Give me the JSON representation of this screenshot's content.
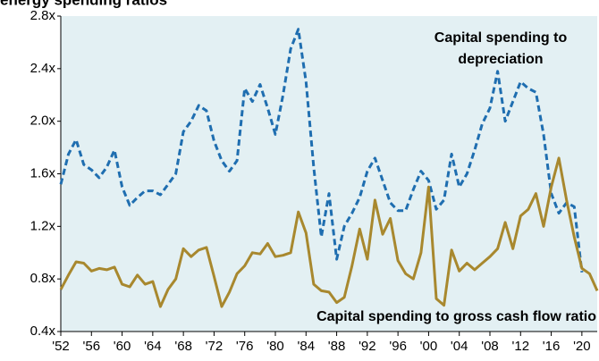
{
  "chart_data": {
    "type": "line",
    "title": "energy spending ratios",
    "annotations": [
      "Capital spending to",
      "depreciation",
      "Capital spending to gross cash flow ratio"
    ],
    "x": [
      1952,
      1953,
      1954,
      1955,
      1956,
      1957,
      1958,
      1959,
      1960,
      1961,
      1962,
      1963,
      1964,
      1965,
      1966,
      1967,
      1968,
      1969,
      1970,
      1971,
      1972,
      1973,
      1974,
      1975,
      1976,
      1977,
      1978,
      1979,
      1980,
      1981,
      1982,
      1983,
      1984,
      1985,
      1986,
      1987,
      1988,
      1989,
      1990,
      1991,
      1992,
      1993,
      1994,
      1995,
      1996,
      1997,
      1998,
      1999,
      2000,
      2001,
      2002,
      2003,
      2004,
      2005,
      2006,
      2007,
      2008,
      2009,
      2010,
      2011,
      2012,
      2013,
      2014,
      2015,
      2016,
      2017,
      2018,
      2019,
      2020,
      2021,
      2022
    ],
    "series": [
      {
        "color": "#1f6eb0",
        "dashed": true,
        "values": [
          1.52,
          1.75,
          1.86,
          1.67,
          1.63,
          1.57,
          1.65,
          1.78,
          1.5,
          1.36,
          1.42,
          1.47,
          1.47,
          1.44,
          1.52,
          1.6,
          1.92,
          2.0,
          2.12,
          2.08,
          1.85,
          1.7,
          1.62,
          1.7,
          2.25,
          2.15,
          2.28,
          2.1,
          1.9,
          2.2,
          2.55,
          2.7,
          2.3,
          1.65,
          1.12,
          1.45,
          0.95,
          1.2,
          1.3,
          1.42,
          1.62,
          1.72,
          1.55,
          1.38,
          1.32,
          1.32,
          1.48,
          1.62,
          1.55,
          1.33,
          1.4,
          1.75,
          1.5,
          1.6,
          1.78,
          1.98,
          2.1,
          2.38,
          2.0,
          2.15,
          2.3,
          2.25,
          2.22,
          1.9,
          1.45,
          1.3,
          1.38,
          1.35,
          0.85,
          null,
          null
        ]
      },
      {
        "color": "#a8882e",
        "dashed": false,
        "values": [
          0.72,
          0.83,
          0.93,
          0.92,
          0.86,
          0.88,
          0.87,
          0.89,
          0.76,
          0.74,
          0.83,
          0.76,
          0.78,
          0.59,
          0.72,
          0.8,
          1.03,
          0.97,
          1.02,
          1.04,
          0.82,
          0.59,
          0.7,
          0.84,
          0.9,
          1.0,
          0.99,
          1.07,
          0.97,
          0.98,
          1.0,
          1.31,
          1.15,
          0.76,
          0.71,
          0.7,
          0.62,
          0.66,
          0.9,
          1.18,
          0.95,
          1.4,
          1.14,
          1.26,
          0.94,
          0.84,
          0.8,
          1.0,
          1.5,
          0.65,
          0.6,
          1.02,
          0.86,
          0.92,
          0.87,
          0.92,
          0.97,
          1.03,
          1.23,
          1.03,
          1.28,
          1.33,
          1.45,
          1.2,
          1.5,
          1.72,
          1.4,
          1.12,
          0.88,
          0.84,
          0.71
        ]
      }
    ],
    "xlim": [
      1952,
      2022
    ],
    "xticks": [
      {
        "value": 1952,
        "label": "'52"
      },
      {
        "value": 1956,
        "label": "'56"
      },
      {
        "value": 1960,
        "label": "'60"
      },
      {
        "value": 1964,
        "label": "'64"
      },
      {
        "value": 1968,
        "label": "'68"
      },
      {
        "value": 1972,
        "label": "'72"
      },
      {
        "value": 1976,
        "label": "'76"
      },
      {
        "value": 1980,
        "label": "'80"
      },
      {
        "value": 1984,
        "label": "'84"
      },
      {
        "value": 1988,
        "label": "'88"
      },
      {
        "value": 1992,
        "label": "'92"
      },
      {
        "value": 1996,
        "label": "'96"
      },
      {
        "value": 2000,
        "label": "'00"
      },
      {
        "value": 2004,
        "label": "'04"
      },
      {
        "value": 2008,
        "label": "'08"
      },
      {
        "value": 2012,
        "label": "'12"
      },
      {
        "value": 2016,
        "label": "'16"
      },
      {
        "value": 2020,
        "label": "'20"
      }
    ],
    "ylim": [
      0.4,
      2.8
    ],
    "yticks": [
      {
        "value": 0.4,
        "label": "0.4x"
      },
      {
        "value": 0.8,
        "label": "0.8x"
      },
      {
        "value": 1.2,
        "label": "1.2x"
      },
      {
        "value": 1.6,
        "label": "1.6x"
      },
      {
        "value": 2.0,
        "label": "2.0x"
      },
      {
        "value": 2.4,
        "label": "2.4x"
      },
      {
        "value": 2.8,
        "label": "2.8x"
      }
    ],
    "background": "#e3f0f3"
  }
}
